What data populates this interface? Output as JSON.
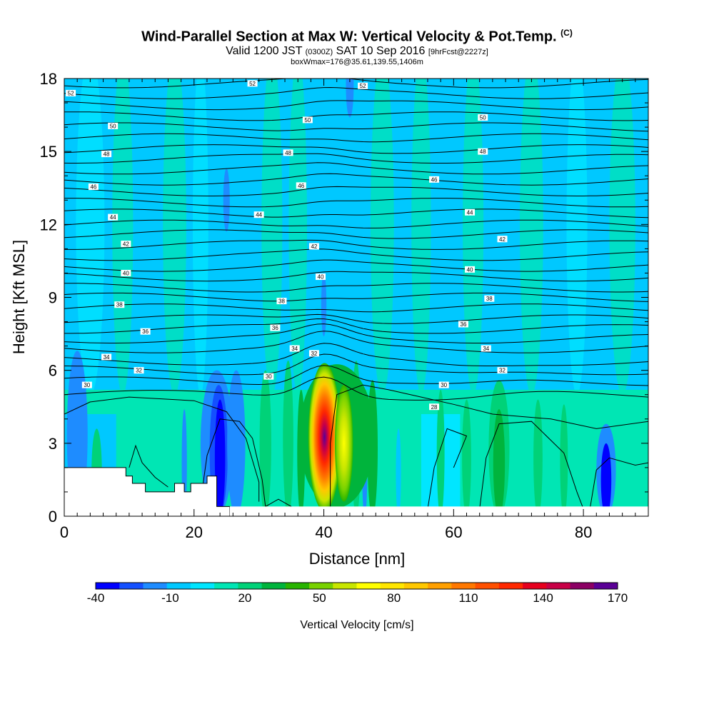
{
  "header": {
    "title": "Wind-Parallel Section at Max W: Vertical Velocity & Pot.Temp.",
    "title_mark": "(C)",
    "valid_prefix": "Valid 1200 JST",
    "valid_utc": "(0300Z)",
    "valid_date": "SAT 10 Sep 2016",
    "forecast": "[9hrFcst@2227z]",
    "boxinfo": "boxWmax=176@35.61,139.55,1406m"
  },
  "chart_data": {
    "type": "heatmap",
    "xlabel": "Distance [nm]",
    "ylabel": "Height [Kft MSL]",
    "xlim": [
      0,
      90
    ],
    "ylim": [
      0,
      18
    ],
    "xticks": [
      0,
      20,
      40,
      60,
      80
    ],
    "yticks": [
      0,
      3,
      6,
      9,
      12,
      15,
      18
    ],
    "colorbar": {
      "label": "Vertical Velocity [cm/s]",
      "tick_labels": [
        "-40",
        "-10",
        "20",
        "50",
        "80",
        "110",
        "140",
        "170"
      ],
      "tick_values": [
        -40,
        -10,
        20,
        50,
        80,
        110,
        140,
        170
      ],
      "levels": [
        -40,
        -30,
        -20,
        -10,
        0,
        10,
        20,
        30,
        40,
        50,
        60,
        70,
        80,
        90,
        100,
        110,
        120,
        130,
        140,
        150,
        160,
        170
      ],
      "colors": [
        "#0000ff",
        "#1450ff",
        "#1e8cff",
        "#00c8ff",
        "#00e6ff",
        "#00e6b4",
        "#00d278",
        "#00b43c",
        "#28b400",
        "#78d200",
        "#c8e600",
        "#ffff00",
        "#ffe600",
        "#ffc800",
        "#ffa000",
        "#ff7800",
        "#ff5000",
        "#ff2800",
        "#e6001e",
        "#c80046",
        "#8c0064",
        "#5a0096"
      ]
    },
    "terrain": {
      "distance": [
        0,
        9.5,
        9.5,
        10.5,
        10.5,
        12.5,
        12.5,
        17,
        17,
        18.5,
        18.5,
        19.5,
        19.5,
        22,
        22,
        23.5,
        23.5,
        25.5
      ],
      "height": [
        2.0,
        2.0,
        1.65,
        1.65,
        1.35,
        1.35,
        1.0,
        1.0,
        1.35,
        1.35,
        1.0,
        1.0,
        1.35,
        1.35,
        1.65,
        1.65,
        0.4,
        0.4
      ]
    },
    "updrafts": [
      {
        "x": 40.2,
        "y": 3.6,
        "peak_cm_s": 176,
        "note": "boxWmax"
      },
      {
        "x": 42.8,
        "y": 3.0,
        "peak_cm_s": 70
      },
      {
        "x": 24.0,
        "y": 3.0,
        "peak_cm_s": -40
      }
    ],
    "theta_contour_labels": [
      {
        "text": "52",
        "x": 1,
        "y": 17.4
      },
      {
        "text": "52",
        "x": 29,
        "y": 17.8
      },
      {
        "text": "52",
        "x": 46,
        "y": 17.7
      },
      {
        "text": "50",
        "x": 7.5,
        "y": 16.05
      },
      {
        "text": "50",
        "x": 37.5,
        "y": 16.3
      },
      {
        "text": "50",
        "x": 64.5,
        "y": 16.4
      },
      {
        "text": "48",
        "x": 6.5,
        "y": 14.9
      },
      {
        "text": "48",
        "x": 34.5,
        "y": 14.95
      },
      {
        "text": "48",
        "x": 64.5,
        "y": 15.0
      },
      {
        "text": "46",
        "x": 4.5,
        "y": 13.55
      },
      {
        "text": "46",
        "x": 36.5,
        "y": 13.6
      },
      {
        "text": "46",
        "x": 57,
        "y": 13.85
      },
      {
        "text": "44",
        "x": 7.5,
        "y": 12.3
      },
      {
        "text": "44",
        "x": 30,
        "y": 12.4
      },
      {
        "text": "44",
        "x": 62.5,
        "y": 12.5
      },
      {
        "text": "42",
        "x": 9.5,
        "y": 11.2
      },
      {
        "text": "42",
        "x": 38.5,
        "y": 11.1
      },
      {
        "text": "42",
        "x": 67.5,
        "y": 11.4
      },
      {
        "text": "40",
        "x": 9.5,
        "y": 10.0
      },
      {
        "text": "40",
        "x": 39.5,
        "y": 9.85
      },
      {
        "text": "40",
        "x": 62.5,
        "y": 10.15
      },
      {
        "text": "38",
        "x": 8.5,
        "y": 8.7
      },
      {
        "text": "38",
        "x": 33.5,
        "y": 8.85
      },
      {
        "text": "38",
        "x": 65.5,
        "y": 8.95
      },
      {
        "text": "36",
        "x": 12.5,
        "y": 7.6
      },
      {
        "text": "36",
        "x": 32.5,
        "y": 7.75
      },
      {
        "text": "36",
        "x": 61.5,
        "y": 7.9
      },
      {
        "text": "34",
        "x": 6.5,
        "y": 6.55
      },
      {
        "text": "34",
        "x": 35.5,
        "y": 6.9
      },
      {
        "text": "34",
        "x": 65,
        "y": 6.9
      },
      {
        "text": "32",
        "x": 11.5,
        "y": 6.0
      },
      {
        "text": "32",
        "x": 38.5,
        "y": 6.7
      },
      {
        "text": "32",
        "x": 67.5,
        "y": 6.0
      },
      {
        "text": "30",
        "x": 3.5,
        "y": 5.4
      },
      {
        "text": "30",
        "x": 31.5,
        "y": 5.75
      },
      {
        "text": "30",
        "x": 58.5,
        "y": 5.4
      },
      {
        "text": "28",
        "x": 57,
        "y": 4.5
      }
    ],
    "theta_levels": [
      30,
      32,
      34,
      36,
      38,
      40,
      42,
      44,
      46,
      48,
      50,
      52
    ]
  }
}
